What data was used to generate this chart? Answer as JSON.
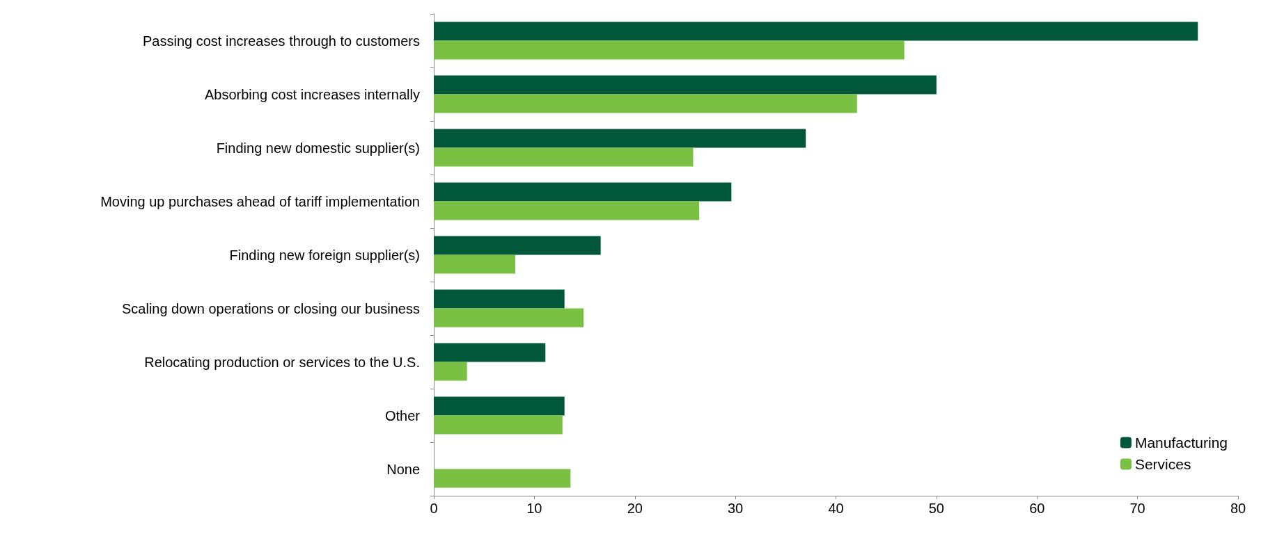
{
  "chart_data": {
    "type": "bar",
    "orientation": "horizontal",
    "categories": [
      "Passing cost increases through to customers",
      "Absorbing cost increases internally",
      "Finding new domestic supplier(s)",
      "Moving up purchases ahead of tariff implementation",
      "Finding new foreign supplier(s)",
      "Scaling down operations or closing our business",
      "Relocating production or services to the U.S.",
      "Other",
      "None"
    ],
    "series": [
      {
        "name": "Manufacturing",
        "color": "#00573a",
        "values": [
          76,
          50,
          37,
          29.6,
          16.6,
          13,
          11.1,
          13,
          null
        ]
      },
      {
        "name": "Services",
        "color": "#7ac143",
        "values": [
          46.8,
          42.1,
          25.8,
          26.4,
          8.1,
          14.9,
          3.3,
          12.8,
          13.6
        ]
      }
    ],
    "xlim": [
      0,
      80
    ],
    "xticks": [
      0,
      10,
      20,
      30,
      40,
      50,
      60,
      70,
      80
    ],
    "grid": false,
    "legend": "bottom right"
  }
}
